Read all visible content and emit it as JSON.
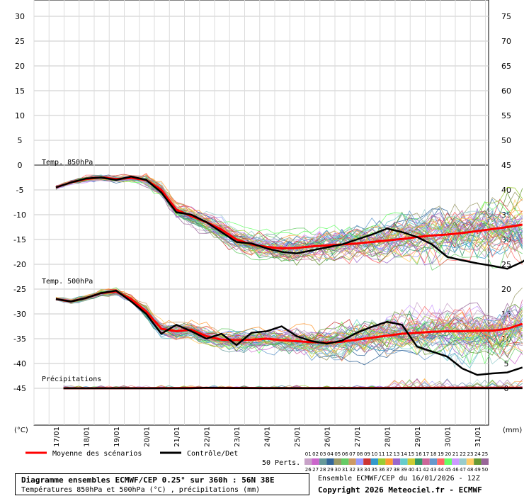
{
  "chart_data": {
    "type": "line",
    "left_axis_unit": "(°C)",
    "right_axis_unit": "(mm)",
    "left_ticks": [
      30,
      25,
      20,
      15,
      10,
      5,
      0,
      -5,
      -10,
      -15,
      -20,
      -25,
      -30,
      -35,
      -40,
      -45
    ],
    "right_ticks": [
      75,
      70,
      65,
      60,
      55,
      50,
      45,
      40,
      35,
      30,
      25,
      20,
      15,
      10,
      5,
      0
    ],
    "x_dates": [
      "17/01",
      "18/01",
      "19/01",
      "20/01",
      "21/01",
      "22/01",
      "23/01",
      "24/01",
      "25/01",
      "26/01",
      "27/01",
      "28/01",
      "29/01",
      "30/01",
      "31/01"
    ],
    "panels": [
      {
        "label": "Temp. 850hPa",
        "ylim": [
          -20,
          -2
        ],
        "series": [
          {
            "name": "Moyenne des scénarios",
            "color": "#ff0000",
            "values": [
              [
                0,
                -4.5
              ],
              [
                0.5,
                -3.5
              ],
              [
                1,
                -2.8
              ],
              [
                1.5,
                -2.5
              ],
              [
                2,
                -2.8
              ],
              [
                2.5,
                -2.6
              ],
              [
                3,
                -3
              ],
              [
                3.5,
                -5
              ],
              [
                4,
                -9
              ],
              [
                4.5,
                -10.3
              ],
              [
                5,
                -11.5
              ],
              [
                5.5,
                -13
              ],
              [
                6,
                -15
              ],
              [
                6.5,
                -16
              ],
              [
                7,
                -16.5
              ],
              [
                7.5,
                -16.8
              ],
              [
                8,
                -16.7
              ],
              [
                8.5,
                -16.4
              ],
              [
                9,
                -16.2
              ],
              [
                9.5,
                -16
              ],
              [
                10,
                -15.8
              ],
              [
                10.5,
                -15.5
              ],
              [
                11,
                -15.2
              ],
              [
                11.5,
                -14.9
              ],
              [
                12,
                -14.5
              ],
              [
                12.5,
                -14.2
              ],
              [
                13,
                -14
              ],
              [
                13.5,
                -13.7
              ],
              [
                14,
                -13.3
              ],
              [
                14.5,
                -12.9
              ],
              [
                15,
                -12.5
              ],
              [
                15.5,
                -12
              ]
            ]
          },
          {
            "name": "Contrôle/Det",
            "color": "#000000",
            "values": [
              [
                0,
                -4.5
              ],
              [
                0.5,
                -3.5
              ],
              [
                1,
                -2.7
              ],
              [
                1.5,
                -2.5
              ],
              [
                2,
                -3
              ],
              [
                2.5,
                -2.3
              ],
              [
                3,
                -3
              ],
              [
                3.5,
                -5.5
              ],
              [
                4,
                -9.5
              ],
              [
                4.5,
                -10
              ],
              [
                5,
                -11.5
              ],
              [
                5.5,
                -13.5
              ],
              [
                6,
                -15.5
              ],
              [
                6.5,
                -15.8
              ],
              [
                7,
                -16.8
              ],
              [
                7.5,
                -17.5
              ],
              [
                8,
                -17.8
              ],
              [
                8.5,
                -17.2
              ],
              [
                9,
                -16.6
              ],
              [
                9.5,
                -16
              ],
              [
                10,
                -15
              ],
              [
                10.5,
                -14
              ],
              [
                11,
                -12.8
              ],
              [
                11.5,
                -13.5
              ],
              [
                12,
                -14.5
              ],
              [
                12.5,
                -16
              ],
              [
                13,
                -18.5
              ],
              [
                13.5,
                -19.2
              ],
              [
                14,
                -19.8
              ],
              [
                14.5,
                -20.3
              ],
              [
                15,
                -20.9
              ],
              [
                15.5,
                -19.5
              ],
              [
                15.8,
                -18.2
              ]
            ]
          }
        ]
      },
      {
        "label": "Temp. 500hPa",
        "ylim": [
          -44,
          -25
        ],
        "series": [
          {
            "name": "Moyenne des scénarios",
            "color": "#ff0000",
            "values": [
              [
                0,
                -27
              ],
              [
                0.5,
                -27.5
              ],
              [
                1,
                -26.8
              ],
              [
                1.5,
                -25.8
              ],
              [
                2,
                -25.5
              ],
              [
                2.5,
                -27
              ],
              [
                3,
                -29.5
              ],
              [
                3.5,
                -33
              ],
              [
                4,
                -33.5
              ],
              [
                4.5,
                -33.2
              ],
              [
                5,
                -34.5
              ],
              [
                5.5,
                -35.2
              ],
              [
                6,
                -35.3
              ],
              [
                6.5,
                -35.2
              ],
              [
                7,
                -35
              ],
              [
                7.5,
                -35.3
              ],
              [
                8,
                -35.5
              ],
              [
                8.5,
                -35.7
              ],
              [
                9,
                -35.8
              ],
              [
                9.5,
                -35.6
              ],
              [
                10,
                -35.2
              ],
              [
                10.5,
                -34.8
              ],
              [
                11,
                -34.4
              ],
              [
                11.5,
                -34
              ],
              [
                12,
                -33.8
              ],
              [
                12.5,
                -33.6
              ],
              [
                13,
                -33.5
              ],
              [
                13.5,
                -33.5
              ],
              [
                14,
                -33.4
              ],
              [
                14.5,
                -33.4
              ],
              [
                15,
                -33
              ],
              [
                15.5,
                -32
              ]
            ]
          },
          {
            "name": "Contrôle/Det",
            "color": "#000000",
            "values": [
              [
                0,
                -27
              ],
              [
                0.5,
                -27.5
              ],
              [
                1,
                -26.8
              ],
              [
                1.5,
                -25.8
              ],
              [
                2,
                -25.3
              ],
              [
                2.5,
                -27.5
              ],
              [
                3,
                -30
              ],
              [
                3.5,
                -34
              ],
              [
                4,
                -32.2
              ],
              [
                4.5,
                -33.5
              ],
              [
                5,
                -35
              ],
              [
                5.5,
                -34
              ],
              [
                6,
                -36.3
              ],
              [
                6.5,
                -33.8
              ],
              [
                7,
                -33.5
              ],
              [
                7.5,
                -32.5
              ],
              [
                8,
                -34.5
              ],
              [
                8.5,
                -35.5
              ],
              [
                9,
                -36
              ],
              [
                9.5,
                -35.4
              ],
              [
                10,
                -33.8
              ],
              [
                10.5,
                -32.6
              ],
              [
                11,
                -31.6
              ],
              [
                11.5,
                -32.2
              ],
              [
                12,
                -36.6
              ],
              [
                12.5,
                -37.6
              ],
              [
                13,
                -38.6
              ],
              [
                13.5,
                -41
              ],
              [
                14,
                -42.3
              ],
              [
                14.5,
                -42
              ],
              [
                15,
                -41.8
              ],
              [
                15.5,
                -40.8
              ]
            ]
          }
        ]
      },
      {
        "label": "Précipitations",
        "ylim": [
          0,
          75
        ],
        "series": [
          {
            "name": "Moyenne des scénarios",
            "color": "#ff0000",
            "values": [
              [
                0.25,
                0.1
              ],
              [
                3,
                0.15
              ],
              [
                5,
                0.4
              ],
              [
                8,
                0.2
              ],
              [
                11,
                0.3
              ],
              [
                13,
                0.5
              ],
              [
                15.5,
                0.6
              ]
            ]
          },
          {
            "name": "Contrôle/Det",
            "color": "#000000",
            "values": [
              [
                0.25,
                0
              ],
              [
                4.5,
                0
              ],
              [
                5,
                0.6
              ],
              [
                6,
                0.2
              ],
              [
                8,
                0.1
              ],
              [
                11,
                0
              ],
              [
                15.5,
                0.1
              ]
            ]
          }
        ]
      }
    ],
    "legend": {
      "mean_label": "Moyenne des scénarios",
      "control_label": "Contrôle/Det",
      "perts_label": "50 Perts.",
      "perts_row1": [
        "01",
        "02",
        "03",
        "04",
        "05",
        "06",
        "07",
        "08",
        "09",
        "10",
        "11",
        "12",
        "13",
        "14",
        "15",
        "16",
        "17",
        "18",
        "19",
        "20",
        "21",
        "22",
        "23",
        "24",
        "25"
      ],
      "perts_row2": [
        "26",
        "27",
        "28",
        "29",
        "30",
        "31",
        "32",
        "33",
        "34",
        "35",
        "36",
        "37",
        "38",
        "39",
        "40",
        "41",
        "42",
        "43",
        "44",
        "45",
        "46",
        "47",
        "48",
        "49",
        "50"
      ],
      "pert_colors": [
        "#c8a2c8",
        "#cc66cc",
        "#669999",
        "#336699",
        "#999966",
        "#66cc66",
        "#cc9966",
        "#9999ff",
        "#cc3333",
        "#3399cc",
        "#99cc33",
        "#ff9933",
        "#9966cc",
        "#66cccc",
        "#cccc33",
        "#339966",
        "#cc6699",
        "#6699cc",
        "#ff6666",
        "#66ff66",
        "#cc99ff",
        "#99cccc",
        "#ffcc66",
        "#669933",
        "#996699"
      ]
    },
    "grid": true,
    "legend_position": "bottom"
  },
  "footer": {
    "title": "Diagramme ensembles ECMWF/CEP 0.25° sur 360h : 56N 38E",
    "subtitle": "Températures 850hPa et 500hPa (°C) , précipitations (mm)",
    "run": "Ensemble ECMWF/CEP du 16/01/2026 - 12Z",
    "copyright": "Copyright 2026 Meteociel.fr - ECMWF"
  }
}
